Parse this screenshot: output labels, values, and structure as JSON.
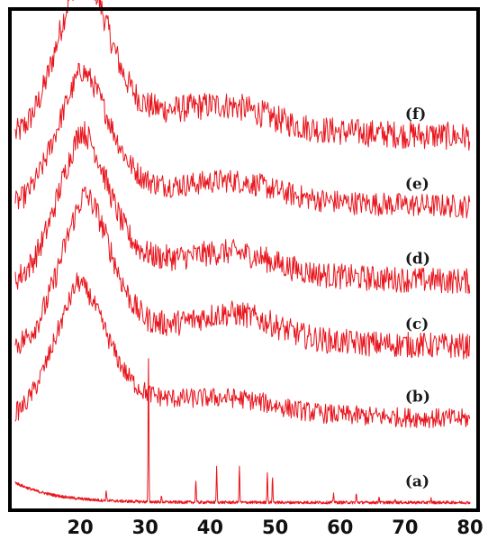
{
  "chart_data": {
    "type": "line",
    "title": "",
    "xlabel": "",
    "ylabel": "",
    "xlim": [
      10,
      80
    ],
    "ylim": [
      0,
      1
    ],
    "grid": false,
    "legend": "none",
    "y_ticks_shown": false,
    "x_ticks": [
      20,
      30,
      40,
      50,
      60,
      70,
      80
    ],
    "x_tick_labels": [
      "20",
      "30",
      "40",
      "50",
      "60",
      "70",
      "80"
    ],
    "trace_color": "#e8141c",
    "frame_color": "#000000",
    "series": [
      {
        "id": "f",
        "label": "(f)",
        "label_x": 72.5,
        "offset": 0.74,
        "amplitude": 0.26,
        "peak_x": 20.0,
        "peak_width": 4.0,
        "tail_height": 0.09,
        "tail_decay": 24,
        "second_x": 43,
        "second_height": 0.035,
        "second_width": 6,
        "noise": 0.028
      },
      {
        "id": "e",
        "label": "(e)",
        "label_x": 72.5,
        "offset": 0.6,
        "amplitude": 0.21,
        "peak_x": 20.0,
        "peak_width": 4.2,
        "tail_height": 0.07,
        "tail_decay": 26,
        "second_x": 44,
        "second_height": 0.03,
        "second_width": 6,
        "noise": 0.024
      },
      {
        "id": "d",
        "label": "(d)",
        "label_x": 72.5,
        "offset": 0.45,
        "amplitude": 0.23,
        "peak_x": 20.0,
        "peak_width": 4.0,
        "tail_height": 0.08,
        "tail_decay": 24,
        "second_x": 44,
        "second_height": 0.035,
        "second_width": 6,
        "noise": 0.026
      },
      {
        "id": "c",
        "label": "(c)",
        "label_x": 72.5,
        "offset": 0.32,
        "amplitude": 0.24,
        "peak_x": 20.5,
        "peak_width": 4.0,
        "tail_height": 0.07,
        "tail_decay": 24,
        "second_x": 44,
        "second_height": 0.045,
        "second_width": 6,
        "noise": 0.026
      },
      {
        "id": "b",
        "label": "(b)",
        "label_x": 72.5,
        "offset": 0.175,
        "amplitude": 0.2,
        "peak_x": 19.5,
        "peak_width": 4.2,
        "tail_height": 0.08,
        "tail_decay": 22,
        "second_x": 44,
        "second_height": 0.02,
        "second_width": 6,
        "noise": 0.02
      },
      {
        "id": "a",
        "label": "(a)",
        "label_x": 72.5,
        "offset": 0.012,
        "amplitude": 0.0,
        "peak_x": 20,
        "peak_width": 4,
        "tail_height": 0.04,
        "tail_decay": 6,
        "second_x": 44,
        "second_height": 0.0,
        "second_width": 6,
        "noise": 0.003,
        "sharp_peaks": [
          {
            "x": 24.0,
            "height": 0.02
          },
          {
            "x": 30.5,
            "height": 0.285
          },
          {
            "x": 32.5,
            "height": 0.012
          },
          {
            "x": 37.8,
            "height": 0.045
          },
          {
            "x": 41.0,
            "height": 0.07
          },
          {
            "x": 44.5,
            "height": 0.07
          },
          {
            "x": 48.8,
            "height": 0.062
          },
          {
            "x": 49.6,
            "height": 0.052
          },
          {
            "x": 59.0,
            "height": 0.018
          },
          {
            "x": 62.5,
            "height": 0.018
          },
          {
            "x": 66.0,
            "height": 0.012
          },
          {
            "x": 68.5,
            "height": 0.008
          },
          {
            "x": 74.0,
            "height": 0.008
          }
        ]
      }
    ]
  }
}
